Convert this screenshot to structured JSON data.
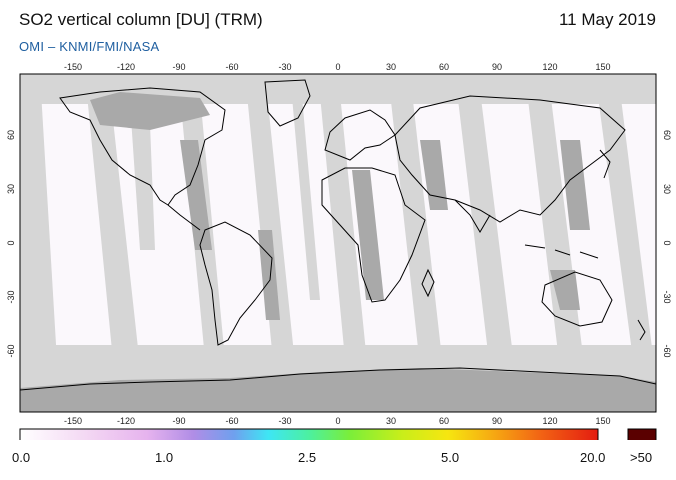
{
  "header": {
    "title": "SO2 vertical column [DU] (TRM)",
    "date": "11 May 2019",
    "credit": "OMI  –  KNMI/FMI/NASA"
  },
  "map": {
    "lon_ticks": [
      "-150",
      "-120",
      "-90",
      "-60",
      "-30",
      "0",
      "30",
      "60",
      "90",
      "120",
      "150"
    ],
    "lat_ticks": [
      "60",
      "30",
      "0",
      "-30",
      "-60"
    ],
    "colors": {
      "ocean_valid": "#fbf8fc",
      "no_data": "#d6d6d6",
      "land_no_data": "#a9a9a9",
      "frame": "#000000"
    }
  },
  "colorbar": {
    "labels": [
      "0.0",
      "1.0",
      "2.5",
      "5.0",
      "20.0"
    ],
    "overflow_label": ">50",
    "overflow_color": "#5a0000",
    "gradient": [
      "#ffffff",
      "#f3d6f3",
      "#e6b3ee",
      "#b08de6",
      "#6fa0ee",
      "#3ee6f4",
      "#4cf0a0",
      "#7aee3a",
      "#c8ee1a",
      "#f6e610",
      "#f6a812",
      "#f26414",
      "#e41c10"
    ]
  }
}
